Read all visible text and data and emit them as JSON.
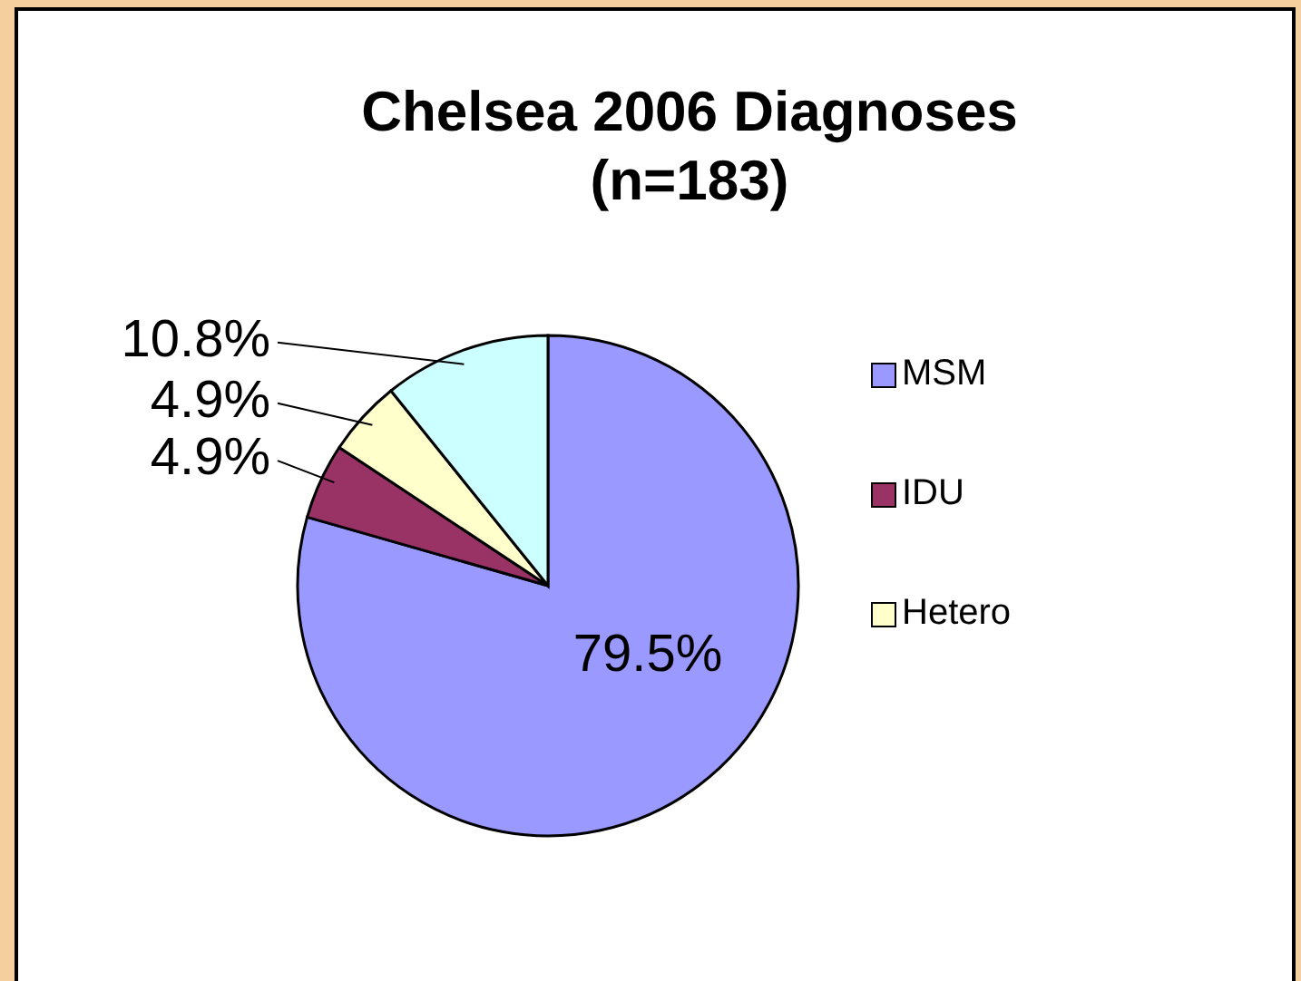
{
  "chart_data": {
    "type": "pie",
    "title": "Chelsea 2006 Diagnoses",
    "subtitle": "(n=183)",
    "categories": [
      "MSM",
      "IDU",
      "Hetero",
      null
    ],
    "values": [
      79.5,
      4.9,
      4.9,
      10.8
    ],
    "value_labels": [
      "79.5%",
      "4.9%",
      "4.9%",
      "10.8%"
    ],
    "colors": [
      "#9999ff",
      "#993366",
      "#ffffcc",
      "#ccffff"
    ],
    "legend": "right"
  }
}
